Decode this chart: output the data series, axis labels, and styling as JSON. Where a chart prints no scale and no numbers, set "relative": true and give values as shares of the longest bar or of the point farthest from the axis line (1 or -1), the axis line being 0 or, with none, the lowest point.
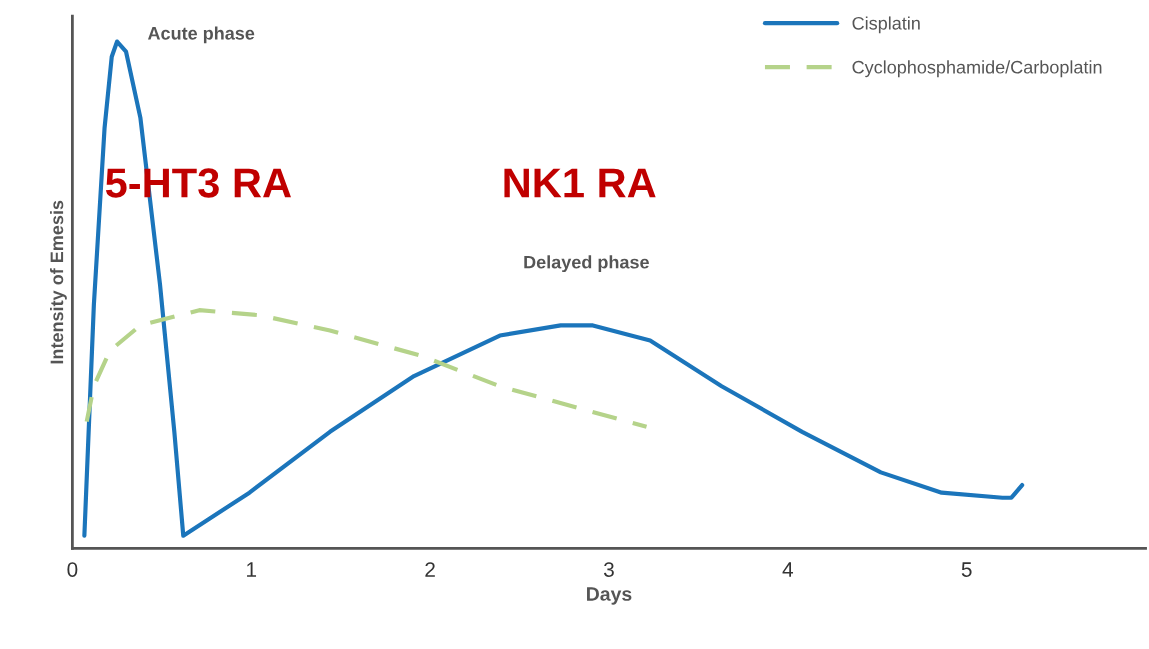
{
  "chart_data": {
    "type": "line",
    "xlabel": "Days",
    "ylabel": "Intensity of Emesis",
    "relative": true,
    "xlim": [
      0,
      6
    ],
    "xticks": [
      0,
      1,
      2,
      3,
      4,
      5
    ],
    "grid": false,
    "legend": "top right",
    "marker": "none",
    "annotations": [
      "Acute phase",
      "Delayed phase",
      "5-HT3 RA",
      "NK1 RA"
    ],
    "series": [
      {
        "name": "Cisplatin",
        "color": "#1b75bb",
        "line_style": "solid",
        "x": [
          0.067,
          0.12,
          0.18,
          0.22,
          0.25,
          0.3,
          0.38,
          0.49,
          0.57,
          0.62,
          0.99,
          1.44,
          1.91,
          2.39,
          2.73,
          2.91,
          3.23,
          3.63,
          4.08,
          4.52,
          4.86,
          5.2,
          5.25,
          5.31
        ],
        "values": [
          0.025,
          0.48,
          0.83,
          0.97,
          1.0,
          0.98,
          0.85,
          0.52,
          0.23,
          0.025,
          0.11,
          0.23,
          0.34,
          0.42,
          0.44,
          0.44,
          0.41,
          0.32,
          0.23,
          0.15,
          0.11,
          0.1,
          0.1,
          0.125
        ]
      },
      {
        "name": "Cyclophosphamide/Carboplatin",
        "color": "#b5d38a",
        "line_style": "dashed",
        "x": [
          0.08,
          0.12,
          0.21,
          0.38,
          0.71,
          1.05,
          1.44,
          1.95,
          2.39,
          2.9,
          3.21
        ],
        "values": [
          0.25,
          0.32,
          0.39,
          0.44,
          0.47,
          0.46,
          0.43,
          0.38,
          0.32,
          0.27,
          0.24
        ]
      }
    ]
  }
}
